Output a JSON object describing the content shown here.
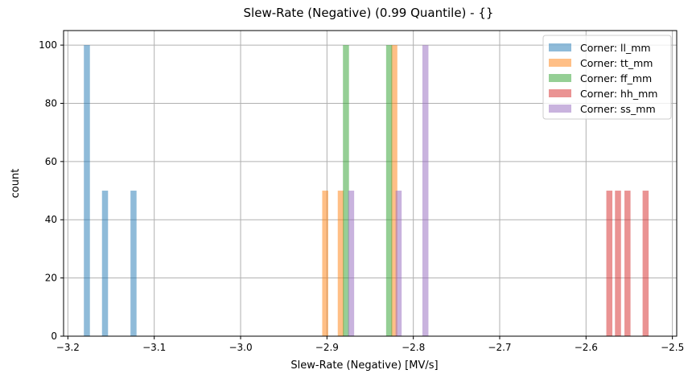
{
  "chart_data": {
    "type": "bar",
    "title": "Slew-Rate (Negative) (0.99 Quantile) - {}",
    "xlabel": "Slew-Rate (Negative) [MV/s]",
    "ylabel": "count",
    "xlim": [
      -3.205,
      -2.495
    ],
    "ylim": [
      0,
      105
    ],
    "xticks": [
      -3.2,
      -3.1,
      -3.0,
      -2.9,
      -2.8,
      -2.7,
      -2.6,
      -2.5
    ],
    "xtick_labels": [
      "−3.2",
      "−3.1",
      "−3.0",
      "−2.9",
      "−2.8",
      "−2.7",
      "−2.6",
      "−2.5"
    ],
    "yticks": [
      0,
      20,
      40,
      60,
      80,
      100
    ],
    "ytick_labels": [
      "0",
      "20",
      "40",
      "60",
      "80",
      "100"
    ],
    "grid": true,
    "legend_position": "top-right",
    "bar_width": 0.007,
    "bar_opacity": 0.5,
    "series": [
      {
        "name": "Corner: ll_mm",
        "color": "#1f77b4",
        "x": [
          -3.178,
          -3.157,
          -3.124
        ],
        "values": [
          100,
          50,
          50
        ]
      },
      {
        "name": "Corner: tt_mm",
        "color": "#ff7f0e",
        "x": [
          -2.902,
          -2.884,
          -2.822
        ],
        "values": [
          50,
          50,
          100
        ]
      },
      {
        "name": "Corner: ff_mm",
        "color": "#2ca02c",
        "x": [
          -2.878,
          -2.828
        ],
        "values": [
          100,
          100
        ]
      },
      {
        "name": "Corner: hh_mm",
        "color": "#d62728",
        "x": [
          -2.573,
          -2.563,
          -2.552,
          -2.531
        ],
        "values": [
          50,
          50,
          50,
          50
        ]
      },
      {
        "name": "Corner: ss_mm",
        "color": "#9467bd",
        "x": [
          -2.872,
          -2.817,
          -2.786
        ],
        "values": [
          50,
          50,
          100
        ]
      }
    ]
  }
}
